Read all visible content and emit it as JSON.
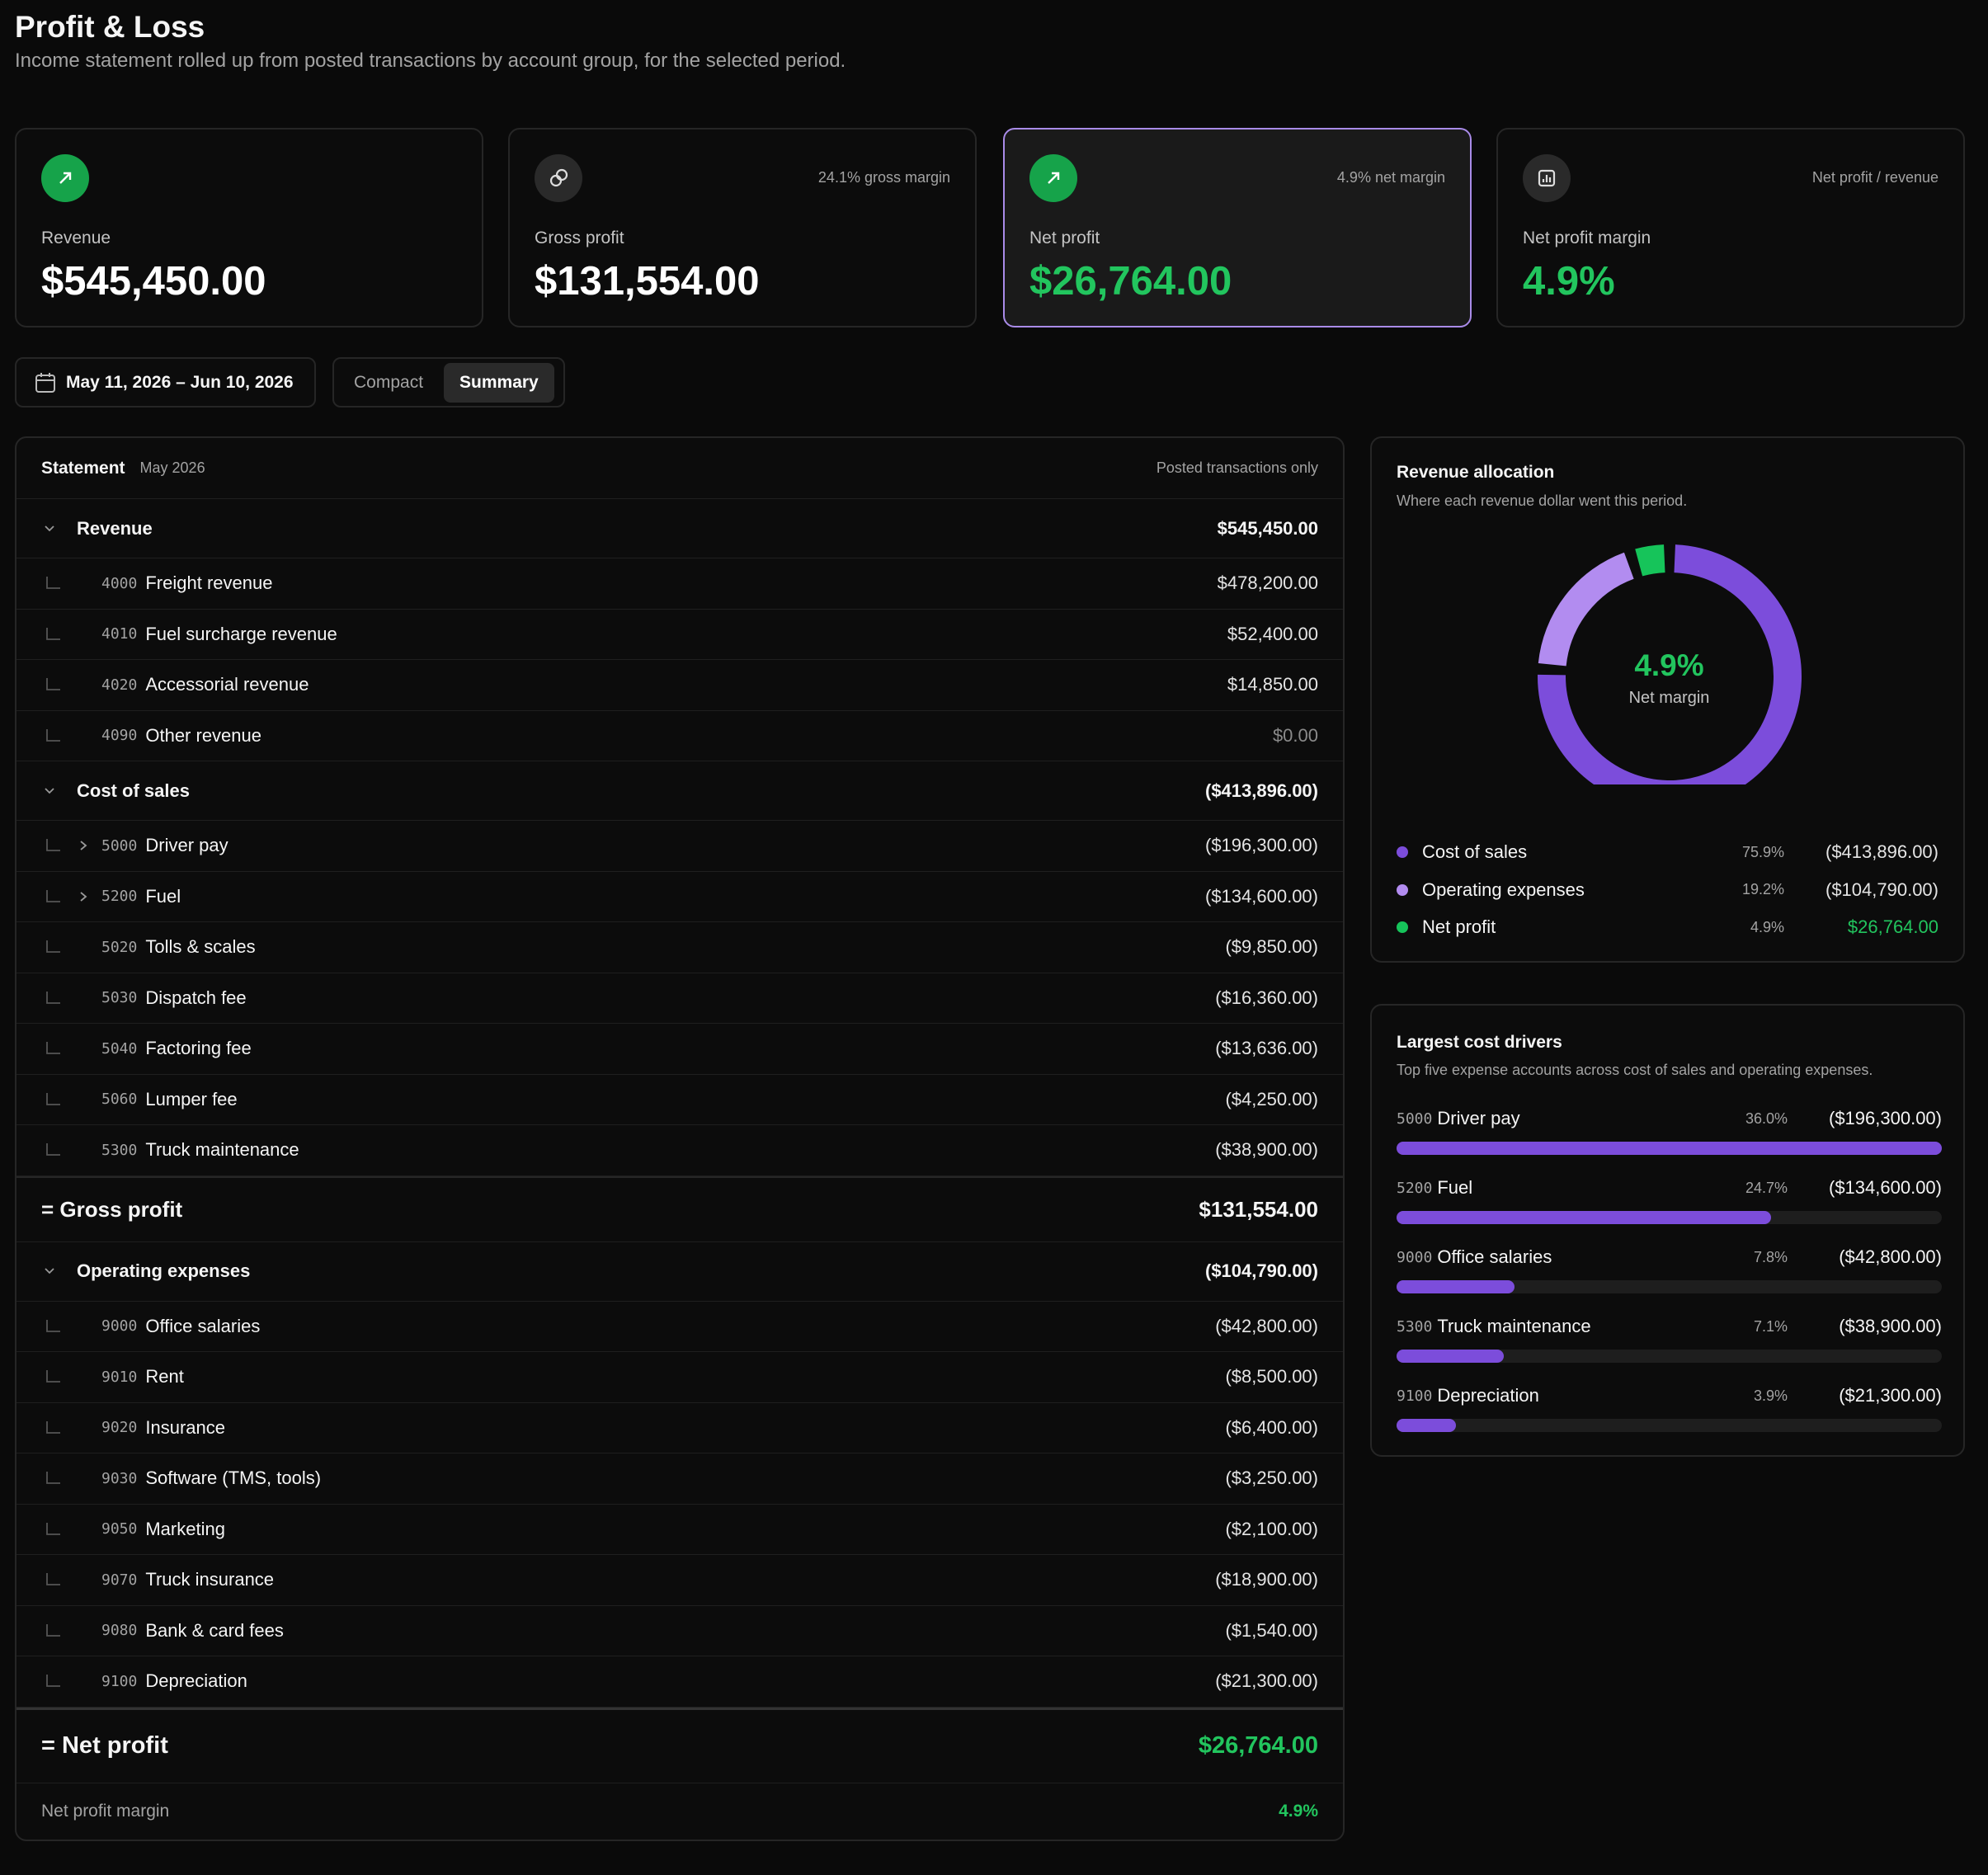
{
  "header": {
    "title": "Profit & Loss",
    "subtitle": "Income statement rolled up from posted transactions by account group, for the selected period."
  },
  "kpis": [
    {
      "label": "Revenue",
      "value": "$545,450.00",
      "value_color": "#ffffff",
      "icon_color": "#16a34a",
      "icon": "arrow"
    },
    {
      "label": "Gross profit",
      "value": "$131,554.00",
      "note": "24.1% gross margin",
      "value_color": "#ffffff",
      "icon_color": "#2a2a2a",
      "icon": "link"
    },
    {
      "label": "Net profit",
      "value": "$26,764.00",
      "note": "4.9% net margin",
      "value_color": "#22c55e",
      "icon_color": "#16a34a",
      "icon": "arrow",
      "highlighted": true
    },
    {
      "label": "Net profit margin",
      "value": "4.9%",
      "note": "Net profit / revenue",
      "value_color": "#22c55e",
      "icon_color": "#2a2a2a",
      "icon": "chart"
    }
  ],
  "controls": {
    "date_range": "May 11, 2026 – Jun 10, 2026",
    "views": [
      "Compact",
      "Summary"
    ],
    "active_view": 1
  },
  "statement": {
    "title": "Statement",
    "period": "May 2026",
    "note": "Posted transactions only",
    "revenue": {
      "name": "Revenue",
      "total": "$545,450.00",
      "lines": [
        {
          "code": "4000",
          "name": "Freight revenue",
          "amount": "$478,200.00"
        },
        {
          "code": "4010",
          "name": "Fuel surcharge revenue",
          "amount": "$52,400.00"
        },
        {
          "code": "4020",
          "name": "Accessorial revenue",
          "amount": "$14,850.00"
        },
        {
          "code": "4090",
          "name": "Other revenue",
          "amount": "$0.00",
          "muted": true
        }
      ]
    },
    "cost_of_sales": {
      "name": "Cost of sales",
      "total": "($413,896.00)",
      "lines": [
        {
          "code": "5000",
          "name": "Driver pay",
          "amount": "($196,300.00)",
          "expandable": true
        },
        {
          "code": "5200",
          "name": "Fuel",
          "amount": "($134,600.00)",
          "expandable": true
        },
        {
          "code": "5020",
          "name": "Tolls & scales",
          "amount": "($9,850.00)"
        },
        {
          "code": "5030",
          "name": "Dispatch fee",
          "amount": "($16,360.00)"
        },
        {
          "code": "5040",
          "name": "Factoring fee",
          "amount": "($13,636.00)"
        },
        {
          "code": "5060",
          "name": "Lumper fee",
          "amount": "($4,250.00)"
        },
        {
          "code": "5300",
          "name": "Truck maintenance",
          "amount": "($38,900.00)"
        }
      ]
    },
    "gross_profit": {
      "label": "= Gross profit",
      "amount": "$131,554.00"
    },
    "operating_expenses": {
      "name": "Operating expenses",
      "total": "($104,790.00)",
      "lines": [
        {
          "code": "9000",
          "name": "Office salaries",
          "amount": "($42,800.00)"
        },
        {
          "code": "9010",
          "name": "Rent",
          "amount": "($8,500.00)"
        },
        {
          "code": "9020",
          "name": "Insurance",
          "amount": "($6,400.00)"
        },
        {
          "code": "9030",
          "name": "Software (TMS, tools)",
          "amount": "($3,250.00)"
        },
        {
          "code": "9050",
          "name": "Marketing",
          "amount": "($2,100.00)"
        },
        {
          "code": "9070",
          "name": "Truck insurance",
          "amount": "($18,900.00)"
        },
        {
          "code": "9080",
          "name": "Bank & card fees",
          "amount": "($1,540.00)"
        },
        {
          "code": "9100",
          "name": "Depreciation",
          "amount": "($21,300.00)"
        }
      ]
    },
    "net_profit": {
      "label": "= Net profit",
      "amount": "$26,764.00"
    },
    "net_margin": {
      "label": "Net profit margin",
      "value": "4.9%"
    }
  },
  "allocation": {
    "title": "Revenue allocation",
    "subtitle": "Where each revenue dollar went this period.",
    "center_value": "4.9%",
    "center_label": "Net margin",
    "items": [
      {
        "name": "Cost of sales",
        "share": 75.9,
        "share_label": "75.9%",
        "amount": "($413,896.00)",
        "color": "#7c4ddb"
      },
      {
        "name": "Operating expenses",
        "share": 19.2,
        "share_label": "19.2%",
        "amount": "($104,790.00)",
        "color": "#b28cf0"
      },
      {
        "name": "Net profit",
        "share": 4.9,
        "share_label": "4.9%",
        "amount": "$26,764.00",
        "color": "#16c45a",
        "amount_color": "#22c55e"
      }
    ]
  },
  "cost_drivers": {
    "title": "Largest cost drivers",
    "subtitle": "Top five expense accounts across cost of sales and operating expenses.",
    "color": "#7c4ddb",
    "items": [
      {
        "code": "5000",
        "name": "Driver pay",
        "share": 36.0,
        "share_label": "36.0%",
        "amount": "($196,300.00)"
      },
      {
        "code": "5200",
        "name": "Fuel",
        "share": 24.7,
        "share_label": "24.7%",
        "amount": "($134,600.00)"
      },
      {
        "code": "9000",
        "name": "Office salaries",
        "share": 7.8,
        "share_label": "7.8%",
        "amount": "($42,800.00)"
      },
      {
        "code": "5300",
        "name": "Truck maintenance",
        "share": 7.1,
        "share_label": "7.1%",
        "amount": "($38,900.00)"
      },
      {
        "code": "9100",
        "name": "Depreciation",
        "share": 3.9,
        "share_label": "3.9%",
        "amount": "($21,300.00)"
      }
    ]
  }
}
